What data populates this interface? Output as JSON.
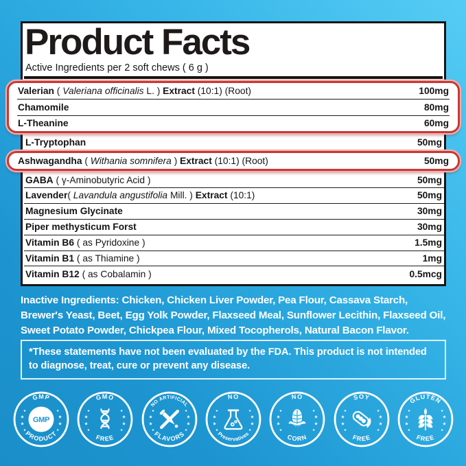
{
  "panel": {
    "title": "Product Facts",
    "subtitle": "Active Ingredients per 2 soft chews ( 6 g )"
  },
  "ingredients": {
    "rows": [
      {
        "group": "g1",
        "amount": "100mg",
        "segments": [
          {
            "style": "bold",
            "text": "Valerian"
          },
          {
            "style": "regular",
            "text": " ( "
          },
          {
            "style": "italic",
            "text": "Valeriana officinalis"
          },
          {
            "style": "regular",
            "text": " L. ) "
          },
          {
            "style": "bold",
            "text": "Extract"
          },
          {
            "style": "regular",
            "text": " (10:1) (Root)"
          }
        ]
      },
      {
        "group": "g1",
        "amount": "80mg",
        "segments": [
          {
            "style": "bold",
            "text": "Chamomile"
          }
        ]
      },
      {
        "group": "g1",
        "amount": "60mg",
        "segments": [
          {
            "style": "bold",
            "text": "L-Theanine"
          }
        ]
      },
      {
        "group": null,
        "amount": "50mg",
        "segments": [
          {
            "style": "bold",
            "text": "L-Tryptophan"
          }
        ]
      },
      {
        "group": "g2",
        "amount": "50mg",
        "segments": [
          {
            "style": "bold",
            "text": "Ashwagandha"
          },
          {
            "style": "regular",
            "text": " ( "
          },
          {
            "style": "italic",
            "text": "Withania somnifera"
          },
          {
            "style": "regular",
            "text": " ) "
          },
          {
            "style": "bold",
            "text": "Extract"
          },
          {
            "style": "regular",
            "text": " (10:1) (Root)"
          }
        ]
      },
      {
        "group": null,
        "amount": "50mg",
        "segments": [
          {
            "style": "bold",
            "text": "GABA"
          },
          {
            "style": "regular",
            "text": " ( γ-Aminobutyric Acid )"
          }
        ]
      },
      {
        "group": null,
        "amount": "50mg",
        "segments": [
          {
            "style": "bold",
            "text": "Lavender"
          },
          {
            "style": "regular",
            "text": "( "
          },
          {
            "style": "italic",
            "text": "Lavandula angustifolia"
          },
          {
            "style": "regular",
            "text": " Mill. ) "
          },
          {
            "style": "bold",
            "text": "Extract"
          },
          {
            "style": "regular",
            "text": " (10:1)"
          }
        ]
      },
      {
        "group": null,
        "amount": "30mg",
        "segments": [
          {
            "style": "bold",
            "text": "Magnesium Glycinate"
          }
        ]
      },
      {
        "group": null,
        "amount": "30mg",
        "segments": [
          {
            "style": "bold",
            "text": "Piper methysticum Forst"
          }
        ]
      },
      {
        "group": null,
        "amount": "1.5mg",
        "segments": [
          {
            "style": "bold",
            "text": "Vitamin B6"
          },
          {
            "style": "regular",
            "text": " ( as Pyridoxine )"
          }
        ]
      },
      {
        "group": null,
        "amount": "1mg",
        "segments": [
          {
            "style": "bold",
            "text": "Vitamin B1"
          },
          {
            "style": "regular",
            "text": " ( as Thiamine )"
          }
        ]
      },
      {
        "group": null,
        "amount": "0.5mcg",
        "segments": [
          {
            "style": "bold",
            "text": "Vitamin B12"
          },
          {
            "style": "regular",
            "text": " ( as Cobalamin )"
          }
        ]
      }
    ]
  },
  "inactive_ingredients": "Inactive Ingredients: Chicken, Chicken Liver Powder, Pea Flour, Cassava Starch, Brewer's Yeast, Beet, Egg Yolk Powder, Flaxseed Meal, Sunflower Lecithin, Flaxseed Oil, Sweet Potato Powder, Chickpea Flour, Mixed Tocopherols, Natural Bacon Flavor.",
  "disclaimer": "*These statements have not been evaluated by the FDA. This product is not intended to diagnose, treat, cure or prevent any disease.",
  "badges": [
    {
      "name": "gmp-product",
      "top": "GMP",
      "bottom": "PRODUCT",
      "center": "GMP",
      "icon": "gmp-seal-icon",
      "accent": "#1f97d2"
    },
    {
      "name": "gmo-free",
      "top": "GMO",
      "bottom": "FREE",
      "icon": "dna-icon",
      "accent": "#26a0d9"
    },
    {
      "name": "no-artificial-flavors",
      "top": "NO ARTIFICIAL",
      "bottom": "FLAVORS",
      "icon": "dropper-crossed-icon",
      "accent": "#2ca9e0"
    },
    {
      "name": "no-preservatives",
      "top": "NO",
      "bottom": "Preservatives",
      "icon": "flask-icon",
      "accent": "#32b1e5"
    },
    {
      "name": "no-corn",
      "top": "NO",
      "bottom": "CORN",
      "icon": "corn-icon",
      "accent": "#38b8ea"
    },
    {
      "name": "soy-free",
      "top": "SOY",
      "bottom": "FREE",
      "icon": "soybean-icon",
      "accent": "#3dbfee"
    },
    {
      "name": "gluten-free",
      "top": "GLUTEN",
      "bottom": "FREE",
      "icon": "wheat-icon",
      "accent": "#43c5f1"
    }
  ],
  "colors": {
    "background_light": "#55ccf5",
    "background_dark": "#1a8ec8",
    "panel_background": "#ffffff",
    "panel_border": "#141414",
    "highlight_border": "#c63938",
    "highlight_halo": "#efb0ac",
    "text_dark": "#141414",
    "text_light": "#ffffff"
  }
}
